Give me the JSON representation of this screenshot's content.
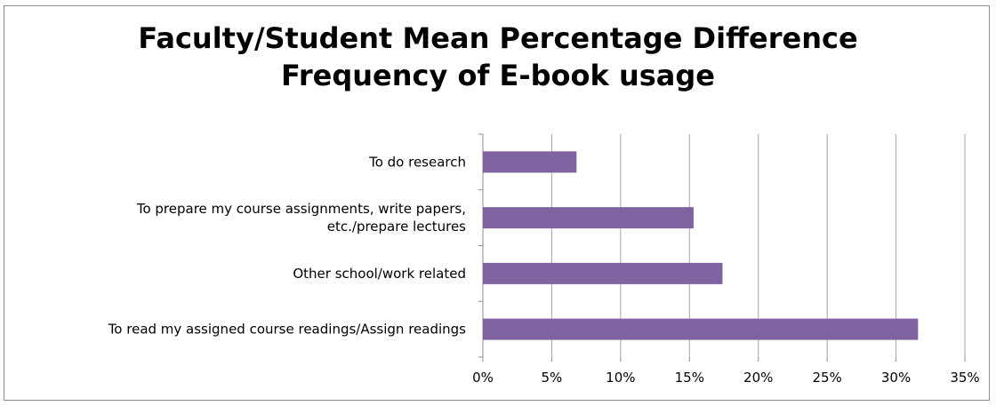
{
  "chart_data": {
    "type": "bar",
    "orientation": "horizontal",
    "title_lines": [
      "Faculty/Student Mean Percentage Difference",
      "Frequency of E-book usage"
    ],
    "categories": [
      [
        "To do research"
      ],
      [
        "To prepare my course assignments, write papers,",
        "etc./prepare lectures"
      ],
      [
        "Other school/work related"
      ],
      [
        "To read my assigned course readings/Assign readings"
      ]
    ],
    "values": [
      0.068,
      0.153,
      0.174,
      0.316
    ],
    "x_ticks": [
      "0%",
      "5%",
      "10%",
      "15%",
      "20%",
      "25%",
      "30%",
      "35%"
    ],
    "xlim": [
      0,
      0.35
    ],
    "grid": true,
    "bar_color": "#8064a2",
    "legend": "none"
  }
}
